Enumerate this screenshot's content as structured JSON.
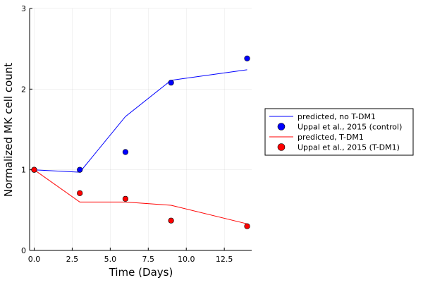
{
  "chart_data": {
    "type": "line",
    "title": "",
    "xlabel": "Time (Days)",
    "ylabel": "Normalized MK cell count",
    "xlim": [
      -0.3,
      14.3
    ],
    "ylim": [
      0,
      3
    ],
    "x_ticks": [
      0,
      2.5,
      5,
      7.5,
      10,
      12.5
    ],
    "x_tick_labels": [
      "0.0",
      "2.5",
      "5.0",
      "7.5",
      "10.0",
      "12.5"
    ],
    "y_ticks": [
      0,
      1,
      2,
      3
    ],
    "y_tick_labels": [
      "0",
      "1",
      "2",
      "3"
    ],
    "grid": true,
    "legend_position": "outside-right",
    "series": [
      {
        "name": "predicted, no T-DM1",
        "kind": "line",
        "color": "#0000ff",
        "x": [
          0,
          3,
          6,
          9,
          14
        ],
        "y": [
          1.0,
          0.97,
          1.66,
          2.11,
          2.24
        ]
      },
      {
        "name": "Uppal et al., 2015 (control)",
        "kind": "scatter",
        "color": "#0000ff",
        "x": [
          0,
          3,
          6,
          9,
          14
        ],
        "y": [
          1.0,
          1.0,
          1.22,
          2.08,
          2.38
        ]
      },
      {
        "name": "predicted, T-DM1",
        "kind": "line",
        "color": "#ff0000",
        "x": [
          0,
          3,
          6,
          9,
          14
        ],
        "y": [
          1.0,
          0.6,
          0.6,
          0.56,
          0.33
        ]
      },
      {
        "name": "Uppal et al., 2015 (T-DM1)",
        "kind": "scatter",
        "color": "#ff0000",
        "x": [
          0,
          3,
          6,
          9,
          14
        ],
        "y": [
          1.0,
          0.71,
          0.64,
          0.37,
          0.3
        ]
      }
    ]
  }
}
